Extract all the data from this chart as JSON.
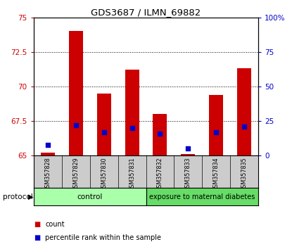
{
  "title": "GDS3687 / ILMN_69882",
  "samples": [
    "GSM357828",
    "GSM357829",
    "GSM357830",
    "GSM357831",
    "GSM357832",
    "GSM357833",
    "GSM357834",
    "GSM357835"
  ],
  "count_values": [
    65.2,
    74.0,
    69.5,
    71.2,
    68.0,
    65.1,
    69.4,
    71.3
  ],
  "percentile_values": [
    8,
    22,
    17,
    20,
    16,
    5,
    17,
    21
  ],
  "ylim_left": [
    65,
    75
  ],
  "ylim_right": [
    0,
    100
  ],
  "yticks_left": [
    65,
    67.5,
    70,
    72.5,
    75
  ],
  "yticks_right": [
    0,
    25,
    50,
    75,
    100
  ],
  "ytick_labels_left": [
    "65",
    "67.5",
    "70",
    "72.5",
    "75"
  ],
  "ytick_labels_right": [
    "0",
    "25",
    "50",
    "75",
    "100%"
  ],
  "bar_color_red": "#cc0000",
  "bar_color_blue": "#0000cc",
  "bar_width": 0.5,
  "bg_color_plot": "#ffffff",
  "protocol_groups": [
    {
      "label": "control",
      "color": "#aaffaa",
      "n": 4
    },
    {
      "label": "exposure to maternal diabetes",
      "color": "#66dd66",
      "n": 4
    }
  ],
  "left_tick_color": "#cc0000",
  "right_tick_color": "#0000cc",
  "base_value": 65.0,
  "figsize": [
    4.15,
    3.54
  ],
  "dpi": 100
}
